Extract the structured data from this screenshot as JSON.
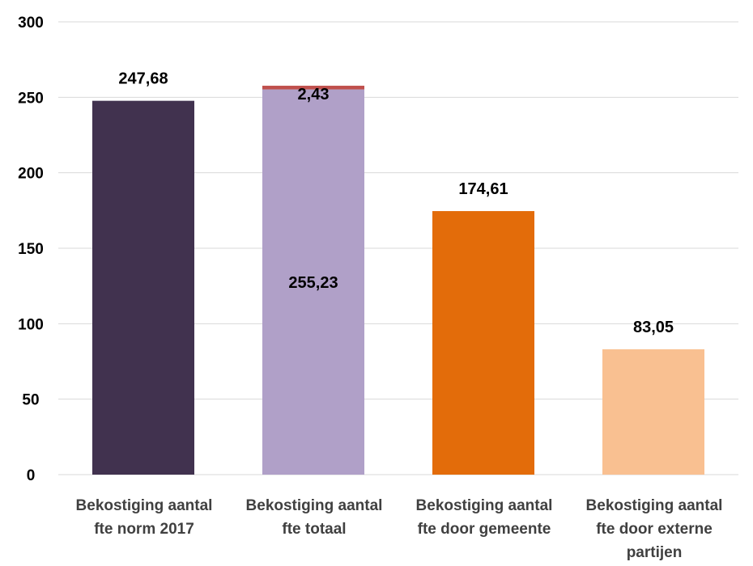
{
  "chart_data": {
    "type": "bar",
    "stacked": true,
    "categories": [
      [
        "Bekostiging aantal",
        "fte norm 2017"
      ],
      [
        "Bekostiging aantal",
        "fte totaal"
      ],
      [
        "Bekostiging aantal",
        "fte door gemeente"
      ],
      [
        "Bekostiging aantal",
        "fte door externe",
        "partijen"
      ]
    ],
    "bars": [
      {
        "segments": [
          {
            "value": 247.68,
            "label": "247,68",
            "color": "#41324f"
          }
        ]
      },
      {
        "segments": [
          {
            "value": 255.23,
            "label": "255,23",
            "color": "#b0a0c8"
          },
          {
            "value": 2.43,
            "label": "2,43",
            "color": "#c0504d"
          }
        ]
      },
      {
        "segments": [
          {
            "value": 174.61,
            "label": "174,61",
            "color": "#e36c0a"
          }
        ]
      },
      {
        "segments": [
          {
            "value": 83.05,
            "label": "83,05",
            "color": "#f9c091"
          }
        ]
      }
    ],
    "ylim": [
      0,
      300
    ],
    "yticks": [
      "0",
      "50",
      "100",
      "150",
      "200",
      "250",
      "300"
    ],
    "grid": true,
    "gridColor": "#d9d9d9",
    "legend": "none",
    "title": "",
    "xlabel": "",
    "ylabel": ""
  }
}
